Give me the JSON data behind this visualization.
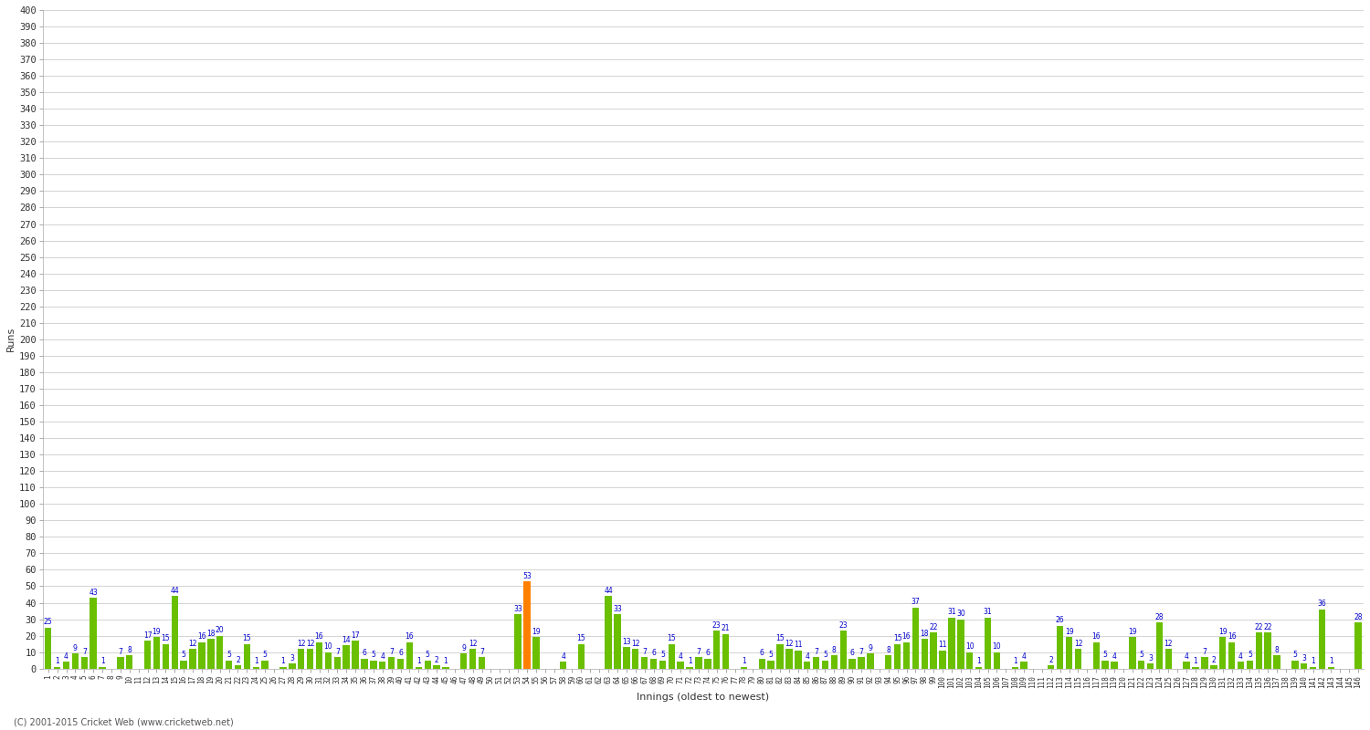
{
  "xlabel": "Innings (oldest to newest)",
  "ylabel": "Runs",
  "ylim": [
    0,
    400
  ],
  "yticks": [
    0,
    10,
    20,
    30,
    40,
    50,
    60,
    70,
    80,
    90,
    100,
    110,
    120,
    130,
    140,
    150,
    160,
    170,
    180,
    190,
    200,
    210,
    220,
    230,
    240,
    250,
    260,
    270,
    280,
    290,
    300,
    310,
    320,
    330,
    340,
    350,
    360,
    370,
    380,
    390,
    400
  ],
  "background_color": "#ffffff",
  "plot_bg": "#ffffff",
  "grid_color": "#cccccc",
  "bar_color_normal": "#6abf00",
  "bar_color_highest": "#ff8000",
  "label_color": "#0000cc",
  "tick_color": "#333333",
  "copyright": "(C) 2001-2015 Cricket Web (www.cricketweb.net)",
  "innings_data": [
    {
      "innings": "1",
      "score": 25,
      "highest": false
    },
    {
      "innings": "2",
      "score": 1,
      "highest": false
    },
    {
      "innings": "3",
      "score": 4,
      "highest": false
    },
    {
      "innings": "4",
      "score": 9,
      "highest": false
    },
    {
      "innings": "5",
      "score": 7,
      "highest": false
    },
    {
      "innings": "6",
      "score": 43,
      "highest": false
    },
    {
      "innings": "7",
      "score": 1,
      "highest": false
    },
    {
      "innings": "8",
      "score": 0,
      "highest": false
    },
    {
      "innings": "9",
      "score": 7,
      "highest": false
    },
    {
      "innings": "10",
      "score": 8,
      "highest": false
    },
    {
      "innings": "11",
      "score": 0,
      "highest": false
    },
    {
      "innings": "12",
      "score": 17,
      "highest": false
    },
    {
      "innings": "13",
      "score": 19,
      "highest": false
    },
    {
      "innings": "14",
      "score": 15,
      "highest": false
    },
    {
      "innings": "15",
      "score": 44,
      "highest": false
    },
    {
      "innings": "16",
      "score": 5,
      "highest": false
    },
    {
      "innings": "17",
      "score": 12,
      "highest": false
    },
    {
      "innings": "18",
      "score": 16,
      "highest": false
    },
    {
      "innings": "19",
      "score": 18,
      "highest": false
    },
    {
      "innings": "20",
      "score": 20,
      "highest": false
    },
    {
      "innings": "21",
      "score": 5,
      "highest": false
    },
    {
      "innings": "22",
      "score": 2,
      "highest": false
    },
    {
      "innings": "23",
      "score": 15,
      "highest": false
    },
    {
      "innings": "24",
      "score": 1,
      "highest": false
    },
    {
      "innings": "25",
      "score": 5,
      "highest": false
    },
    {
      "innings": "26",
      "score": 0,
      "highest": false
    },
    {
      "innings": "27",
      "score": 1,
      "highest": false
    },
    {
      "innings": "28",
      "score": 3,
      "highest": false
    },
    {
      "innings": "29",
      "score": 12,
      "highest": false
    },
    {
      "innings": "30",
      "score": 12,
      "highest": false
    },
    {
      "innings": "31",
      "score": 16,
      "highest": false
    },
    {
      "innings": "32",
      "score": 10,
      "highest": false
    },
    {
      "innings": "33",
      "score": 7,
      "highest": false
    },
    {
      "innings": "34",
      "score": 14,
      "highest": false
    },
    {
      "innings": "35",
      "score": 17,
      "highest": false
    },
    {
      "innings": "36",
      "score": 6,
      "highest": false
    },
    {
      "innings": "37",
      "score": 5,
      "highest": false
    },
    {
      "innings": "38",
      "score": 4,
      "highest": false
    },
    {
      "innings": "39",
      "score": 7,
      "highest": false
    },
    {
      "innings": "40",
      "score": 6,
      "highest": false
    },
    {
      "innings": "41",
      "score": 16,
      "highest": false
    },
    {
      "innings": "42",
      "score": 1,
      "highest": false
    },
    {
      "innings": "43",
      "score": 5,
      "highest": false
    },
    {
      "innings": "44",
      "score": 2,
      "highest": false
    },
    {
      "innings": "45",
      "score": 1,
      "highest": false
    },
    {
      "innings": "46",
      "score": 0,
      "highest": false
    },
    {
      "innings": "47",
      "score": 9,
      "highest": false
    },
    {
      "innings": "48",
      "score": 12,
      "highest": false
    },
    {
      "innings": "49",
      "score": 7,
      "highest": false
    },
    {
      "innings": "50",
      "score": 0,
      "highest": false
    },
    {
      "innings": "51",
      "score": 0,
      "highest": false
    },
    {
      "innings": "52",
      "score": 0,
      "highest": false
    },
    {
      "innings": "53",
      "score": 33,
      "highest": false
    },
    {
      "innings": "54",
      "score": 53,
      "highest": true
    },
    {
      "innings": "55",
      "score": 19,
      "highest": false
    },
    {
      "innings": "56",
      "score": 0,
      "highest": false
    },
    {
      "innings": "57",
      "score": 0,
      "highest": false
    },
    {
      "innings": "58",
      "score": 4,
      "highest": false
    },
    {
      "innings": "59",
      "score": 0,
      "highest": false
    },
    {
      "innings": "60",
      "score": 15,
      "highest": false
    },
    {
      "innings": "61",
      "score": 0,
      "highest": false
    },
    {
      "innings": "62",
      "score": 0,
      "highest": false
    },
    {
      "innings": "63",
      "score": 44,
      "highest": false
    },
    {
      "innings": "64",
      "score": 33,
      "highest": false
    },
    {
      "innings": "65",
      "score": 13,
      "highest": false
    },
    {
      "innings": "66",
      "score": 12,
      "highest": false
    },
    {
      "innings": "67",
      "score": 7,
      "highest": false
    },
    {
      "innings": "68",
      "score": 6,
      "highest": false
    },
    {
      "innings": "69",
      "score": 5,
      "highest": false
    },
    {
      "innings": "70",
      "score": 15,
      "highest": false
    },
    {
      "innings": "71",
      "score": 4,
      "highest": false
    },
    {
      "innings": "72",
      "score": 1,
      "highest": false
    },
    {
      "innings": "73",
      "score": 7,
      "highest": false
    },
    {
      "innings": "74",
      "score": 6,
      "highest": false
    },
    {
      "innings": "75",
      "score": 23,
      "highest": false
    },
    {
      "innings": "76",
      "score": 21,
      "highest": false
    },
    {
      "innings": "77",
      "score": 0,
      "highest": false
    },
    {
      "innings": "78",
      "score": 1,
      "highest": false
    },
    {
      "innings": "79",
      "score": 0,
      "highest": false
    },
    {
      "innings": "80",
      "score": 6,
      "highest": false
    },
    {
      "innings": "81",
      "score": 5,
      "highest": false
    },
    {
      "innings": "82",
      "score": 15,
      "highest": false
    },
    {
      "innings": "83",
      "score": 12,
      "highest": false
    },
    {
      "innings": "84",
      "score": 11,
      "highest": false
    },
    {
      "innings": "85",
      "score": 4,
      "highest": false
    },
    {
      "innings": "86",
      "score": 7,
      "highest": false
    },
    {
      "innings": "87",
      "score": 5,
      "highest": false
    },
    {
      "innings": "88",
      "score": 8,
      "highest": false
    },
    {
      "innings": "89",
      "score": 23,
      "highest": false
    },
    {
      "innings": "90",
      "score": 6,
      "highest": false
    },
    {
      "innings": "91",
      "score": 7,
      "highest": false
    },
    {
      "innings": "92",
      "score": 9,
      "highest": false
    },
    {
      "innings": "93",
      "score": 0,
      "highest": false
    },
    {
      "innings": "94",
      "score": 8,
      "highest": false
    },
    {
      "innings": "95",
      "score": 15,
      "highest": false
    },
    {
      "innings": "96",
      "score": 16,
      "highest": false
    },
    {
      "innings": "97",
      "score": 37,
      "highest": false
    },
    {
      "innings": "98",
      "score": 18,
      "highest": false
    },
    {
      "innings": "99",
      "score": 22,
      "highest": false
    },
    {
      "innings": "100",
      "score": 11,
      "highest": false
    },
    {
      "innings": "101",
      "score": 31,
      "highest": false
    },
    {
      "innings": "102",
      "score": 30,
      "highest": false
    },
    {
      "innings": "103",
      "score": 10,
      "highest": false
    },
    {
      "innings": "104",
      "score": 1,
      "highest": false
    },
    {
      "innings": "105",
      "score": 31,
      "highest": false
    },
    {
      "innings": "106",
      "score": 10,
      "highest": false
    },
    {
      "innings": "107",
      "score": 0,
      "highest": false
    },
    {
      "innings": "108",
      "score": 1,
      "highest": false
    },
    {
      "innings": "109",
      "score": 4,
      "highest": false
    },
    {
      "innings": "110",
      "score": 0,
      "highest": false
    },
    {
      "innings": "111",
      "score": 0,
      "highest": false
    },
    {
      "innings": "112",
      "score": 2,
      "highest": false
    },
    {
      "innings": "113",
      "score": 26,
      "highest": false
    },
    {
      "innings": "114",
      "score": 19,
      "highest": false
    },
    {
      "innings": "115",
      "score": 12,
      "highest": false
    },
    {
      "innings": "116",
      "score": 0,
      "highest": false
    },
    {
      "innings": "117",
      "score": 16,
      "highest": false
    },
    {
      "innings": "118",
      "score": 5,
      "highest": false
    },
    {
      "innings": "119",
      "score": 4,
      "highest": false
    },
    {
      "innings": "120",
      "score": 0,
      "highest": false
    },
    {
      "innings": "121",
      "score": 19,
      "highest": false
    },
    {
      "innings": "122",
      "score": 5,
      "highest": false
    },
    {
      "innings": "123",
      "score": 3,
      "highest": false
    },
    {
      "innings": "124",
      "score": 28,
      "highest": false
    },
    {
      "innings": "125",
      "score": 12,
      "highest": false
    },
    {
      "innings": "126",
      "score": 0,
      "highest": false
    },
    {
      "innings": "127",
      "score": 4,
      "highest": false
    },
    {
      "innings": "128",
      "score": 1,
      "highest": false
    },
    {
      "innings": "129",
      "score": 7,
      "highest": false
    },
    {
      "innings": "130",
      "score": 2,
      "highest": false
    },
    {
      "innings": "131",
      "score": 19,
      "highest": false
    },
    {
      "innings": "132",
      "score": 16,
      "highest": false
    },
    {
      "innings": "133",
      "score": 4,
      "highest": false
    },
    {
      "innings": "134",
      "score": 5,
      "highest": false
    },
    {
      "innings": "135",
      "score": 22,
      "highest": false
    },
    {
      "innings": "136",
      "score": 22,
      "highest": false
    },
    {
      "innings": "137",
      "score": 8,
      "highest": false
    },
    {
      "innings": "138",
      "score": 0,
      "highest": false
    },
    {
      "innings": "139",
      "score": 5,
      "highest": false
    },
    {
      "innings": "140",
      "score": 3,
      "highest": false
    },
    {
      "innings": "141",
      "score": 1,
      "highest": false
    },
    {
      "innings": "142",
      "score": 36,
      "highest": false
    },
    {
      "innings": "143",
      "score": 1,
      "highest": false
    },
    {
      "innings": "144",
      "score": 0,
      "highest": false
    },
    {
      "innings": "145",
      "score": 0,
      "highest": false
    },
    {
      "innings": "146",
      "score": 28,
      "highest": false
    }
  ]
}
